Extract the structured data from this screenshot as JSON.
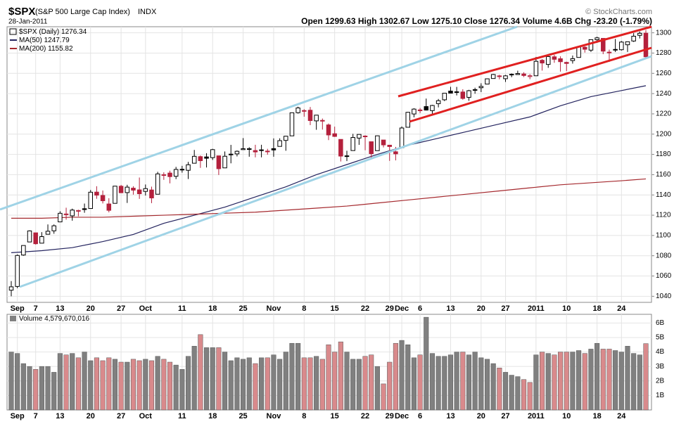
{
  "chart_data": {
    "type": "candlestick",
    "header": {
      "symbol": "$SPX",
      "name": "(S&P 500 Large Cap Index)",
      "exchange": "INDX",
      "date": "28-Jan-2011",
      "copyright": "© StockCharts.com",
      "open_label": "Open",
      "high_label": "High",
      "low_label": "Low",
      "low_value": "1275.10",
      "close_label": "Close",
      "volume_label": "Volume",
      "volume_value": "4.6B",
      "chg_label": "Chg",
      "chg": "-23.20 (-1.79%)"
    },
    "name": "$SPX (Daily)",
    "up_color": "#000000",
    "down_color": "#b4203c",
    "categories": [
      null,
      "Sep",
      null,
      null,
      "7",
      null,
      null,
      null,
      "13",
      null,
      null,
      null,
      null,
      "20",
      null,
      null,
      null,
      null,
      "27",
      null,
      null,
      null,
      "Oct",
      null,
      null,
      null,
      null,
      null,
      "11",
      null,
      null,
      null,
      null,
      "18",
      null,
      null,
      null,
      null,
      "25",
      null,
      null,
      null,
      null,
      "Nov",
      null,
      null,
      null,
      null,
      "8",
      null,
      null,
      null,
      null,
      "15",
      null,
      null,
      null,
      null,
      "22",
      null,
      null,
      null,
      "29",
      null,
      "Dec",
      null,
      null,
      "6",
      null,
      null,
      null,
      null,
      "13",
      null,
      null,
      null,
      null,
      "20",
      null,
      null,
      null,
      "27",
      null,
      null,
      null,
      null,
      "2011",
      null,
      null,
      null,
      null,
      "10",
      null,
      null,
      null,
      null,
      "18",
      null,
      null,
      null,
      "24",
      null,
      null,
      null,
      null
    ],
    "open": [
      1046,
      1049.7,
      1080.7,
      1093.6,
      1102.6,
      1092.4,
      1101.2,
      1104.6,
      1113.4,
      1121.2,
      1119.4,
      1123.9,
      1126.4,
      1126.6,
      1142.8,
      1139.5,
      1131.1,
      1131.7,
      1148.6,
      1142.3,
      1146.7,
      1145,
      1143.5,
      1144.9,
      1140.7,
      1159.8,
      1161.6,
      1158.4,
      1165.3,
      1164.3,
      1171.3,
      1177.8,
      1177.5,
      1176.8,
      1178.6,
      1166.7,
      1179.6,
      1180.5,
      1184.7,
      1184.9,
      1183.8,
      1184.5,
      1183,
      1185.7,
      1187.9,
      1193.8,
      1198.3,
      1221.2,
      1223.2,
      1223.6,
      1213.1,
      1213,
      1209.1,
      1200.4,
      1194.8,
      1178.3,
      1183.8,
      1196.1,
      1198.1,
      1192.5,
      1183.7,
      1194.2,
      1189.1,
      1182.6,
      1186.6,
      1206.8,
      1219.9,
      1223.9,
      1227.2,
      1223.2,
      1230.1,
      1233.9,
      1242.5,
      1241.8,
      1241.6,
      1236.3,
      1243.6,
      1245.8,
      1249.4,
      1254.9,
      1257.5,
      1254.7,
      1259.1,
      1258.8,
      1259.4,
      1256.8,
      1257.6,
      1272.9,
      1268.8,
      1276.3,
      1274.4,
      1270.8,
      1272.6,
      1275.7,
      1285.8,
      1282.9,
      1293.2,
      1294.5,
      1280.9,
      1283.6,
      1283.3,
      1288.2,
      1291.9,
      1297.5,
      1299.63
    ],
    "high": [
      1055,
      1081.3,
      1090.1,
      1105.1,
      1102.6,
      1103.3,
      1110.9,
      1110.9,
      1123.9,
      1127.4,
      1126.5,
      1125.4,
      1131.5,
      1144.9,
      1148.6,
      1144.4,
      1136.8,
      1148.9,
      1149.9,
      1150,
      1148.6,
      1157.2,
      1150.3,
      1148.2,
      1162.8,
      1162.3,
      1163.9,
      1167.7,
      1168.7,
      1172.6,
      1184.4,
      1178.9,
      1181.2,
      1185.5,
      1178.6,
      1182.9,
      1189.4,
      1183.9,
      1196.1,
      1187.1,
      1189.5,
      1189.5,
      1185.5,
      1195.8,
      1195.9,
      1198.3,
      1221.3,
      1227.1,
      1224.6,
      1226.8,
      1218.8,
      1215.4,
      1210.5,
      1207.4,
      1194.8,
      1183.6,
      1200.3,
      1199.9,
      1198.9,
      1192.5,
      1198.6,
      1194.2,
      1189.1,
      1187.4,
      1207.6,
      1221.9,
      1225.6,
      1225.8,
      1235.1,
      1228.9,
      1234.7,
      1240.4,
      1246.7,
      1246.6,
      1244.3,
      1243.7,
      1245.8,
      1250.2,
      1255,
      1259.4,
      1258.6,
      1258.4,
      1259.9,
      1262.6,
      1261.1,
      1259.3,
      1276.2,
      1274.1,
      1277.6,
      1278.2,
      1276.8,
      1271.5,
      1277.6,
      1286.9,
      1286.7,
      1293.5,
      1296.1,
      1294.6,
      1283.4,
      1293.9,
      1291.9,
      1291.3,
      1299.7,
      1301.3,
      1302.67
    ],
    "low": [
      1040,
      1048,
      1080,
      1093.6,
      1091,
      1092.4,
      1101.2,
      1101.7,
      1113.4,
      1115.6,
      1114.6,
      1118.9,
      1122.4,
      1126.6,
      1136.2,
      1131.6,
      1122.8,
      1131.7,
      1142,
      1132.1,
      1140.3,
      1136.1,
      1139.4,
      1131.9,
      1140.7,
      1154.9,
      1151.4,
      1155.6,
      1162,
      1155.7,
      1171.3,
      1166.7,
      1167.1,
      1174.5,
      1159.7,
      1166.7,
      1171.2,
      1178,
      1184.7,
      1177.7,
      1177.1,
      1177.1,
      1179.7,
      1177.7,
      1187.9,
      1183.6,
      1198.3,
      1220.3,
      1217.2,
      1208.9,
      1204.3,
      1204.5,
      1194.1,
      1197.2,
      1173,
      1173.4,
      1183.8,
      1189.4,
      1184.1,
      1176.9,
      1183.7,
      1186.9,
      1173.6,
      1174.1,
      1186.6,
      1206.8,
      1216.6,
      1220.7,
      1223.3,
      1219.5,
      1226.4,
      1232.6,
      1240.3,
      1238.2,
      1234,
      1232.9,
      1239.9,
      1241.5,
      1249.4,
      1254.9,
      1254.1,
      1251.5,
      1256.2,
      1258.8,
      1256.3,
      1254.2,
      1257.6,
      1262.7,
      1265.4,
      1270.4,
      1261.7,
      1262.2,
      1269.6,
      1275.7,
      1280.5,
      1281.1,
      1290.2,
      1278.9,
      1271.3,
      1281,
      1282.5,
      1281.1,
      1291,
      1294.4,
      1275.1
    ],
    "close": [
      1049.33,
      1080.29,
      1090.1,
      1104.51,
      1091.84,
      1098.87,
      1104.18,
      1109.55,
      1121.9,
      1121.1,
      1125.07,
      1124.66,
      1125.59,
      1142.71,
      1139.78,
      1134.28,
      1124.83,
      1148.67,
      1142.16,
      1147.7,
      1144.73,
      1141.2,
      1146.24,
      1137.03,
      1160.75,
      1159.97,
      1158.06,
      1165.15,
      1165.32,
      1169.77,
      1178.1,
      1173.81,
      1176.19,
      1184.71,
      1165.9,
      1178.17,
      1180.26,
      1183.08,
      1185.62,
      1185.64,
      1182.45,
      1183.78,
      1183.26,
      1184.38,
      1193.57,
      1197.96,
      1221.06,
      1225.85,
      1223.25,
      1213.4,
      1218.71,
      1213.54,
      1199.21,
      1197.75,
      1178.34,
      1178.59,
      1196.69,
      1199.73,
      1197.84,
      1180.73,
      1198.35,
      1189.4,
      1187.76,
      1180.55,
      1206.07,
      1221.53,
      1224.71,
      1223.12,
      1223.75,
      1228.28,
      1233,
      1240.4,
      1240.46,
      1241.59,
      1235.23,
      1242.87,
      1243.91,
      1247.08,
      1254.6,
      1258.84,
      1256.77,
      1257.54,
      1258.51,
      1259.78,
      1257.88,
      1257.64,
      1271.87,
      1270.2,
      1276.56,
      1273.85,
      1271.5,
      1269.75,
      1274.48,
      1285.96,
      1283.76,
      1293.24,
      1295.02,
      1281.92,
      1280.26,
      1283.35,
      1290.84,
      1291.18,
      1296.63,
      1299.54,
      1276.34
    ],
    "ylim": [
      1034,
      1306
    ],
    "yticks": [
      1040,
      1060,
      1080,
      1100,
      1120,
      1140,
      1160,
      1180,
      1200,
      1220,
      1240,
      1260,
      1280,
      1300
    ],
    "grid": true,
    "ma": [
      {
        "name": "MA(50)",
        "color": "#23235e",
        "x": [
          0,
          5,
          10,
          15,
          20,
          25,
          30,
          35,
          40,
          45,
          50,
          55,
          60,
          65,
          70,
          75,
          80,
          85,
          90,
          95,
          100,
          104
        ],
        "values": [
          1083,
          1085,
          1088,
          1094,
          1101,
          1112,
          1120,
          1128,
          1138,
          1148,
          1160,
          1170,
          1180,
          1189,
          1196,
          1203,
          1210,
          1217,
          1228,
          1237,
          1243,
          1247.79
        ]
      },
      {
        "name": "MA(200)",
        "color": "#a5292e",
        "x": [
          0,
          5,
          10,
          15,
          20,
          25,
          30,
          35,
          40,
          45,
          50,
          55,
          60,
          65,
          70,
          75,
          80,
          85,
          90,
          95,
          100,
          104
        ],
        "values": [
          1117,
          1117,
          1118,
          1118,
          1119,
          1120,
          1121,
          1122,
          1123,
          1125,
          1127,
          1129,
          1132,
          1135,
          1138,
          1141,
          1144,
          1147,
          1150,
          1152,
          1154,
          1155.82
        ]
      }
    ],
    "volume": {
      "name": "Volume",
      "value_label": "4,579,670,016",
      "up_color": "#808080",
      "down_color": "#d98a8c",
      "values": [
        4.0,
        3.9,
        3.2,
        3.0,
        2.8,
        3.0,
        3.0,
        2.6,
        3.9,
        3.8,
        3.9,
        3.6,
        4.0,
        3.4,
        3.6,
        3.4,
        3.6,
        3.5,
        3.3,
        3.3,
        3.5,
        3.4,
        3.5,
        3.4,
        3.7,
        3.5,
        3.3,
        3.1,
        2.8,
        3.7,
        4.4,
        5.2,
        4.3,
        4.3,
        4.3,
        4.0,
        3.4,
        3.6,
        3.5,
        3.6,
        3.2,
        3.6,
        3.6,
        3.8,
        3.5,
        4.0,
        4.6,
        4.6,
        3.6,
        3.6,
        3.7,
        3.5,
        4.5,
        4.0,
        4.7,
        4.0,
        3.5,
        3.5,
        3.7,
        3.8,
        3.0,
        1.8,
        3.3,
        4.6,
        4.8,
        4.5,
        3.6,
        3.8,
        6.4,
        3.9,
        3.7,
        3.7,
        3.8,
        4.0,
        4.0,
        3.8,
        4.0,
        3.6,
        3.5,
        3.2,
        2.9,
        2.6,
        2.4,
        2.3,
        2.1,
        1.9,
        3.8,
        4.0,
        3.9,
        3.8,
        4.0,
        4.0,
        4.0,
        4.1,
        3.9,
        4.2,
        4.6,
        4.2,
        4.2,
        4.1,
        4.0,
        4.4,
        3.9,
        3.8,
        4.579670016
      ],
      "ylim": [
        0,
        6.6
      ],
      "yticks": [
        {
          "value": 1,
          "label": "1B"
        },
        {
          "value": 2,
          "label": "2B"
        },
        {
          "value": 3,
          "label": "3B"
        },
        {
          "value": 4,
          "label": "4B"
        },
        {
          "value": 5,
          "label": "5B"
        },
        {
          "value": 6,
          "label": "6B"
        }
      ]
    }
  }
}
